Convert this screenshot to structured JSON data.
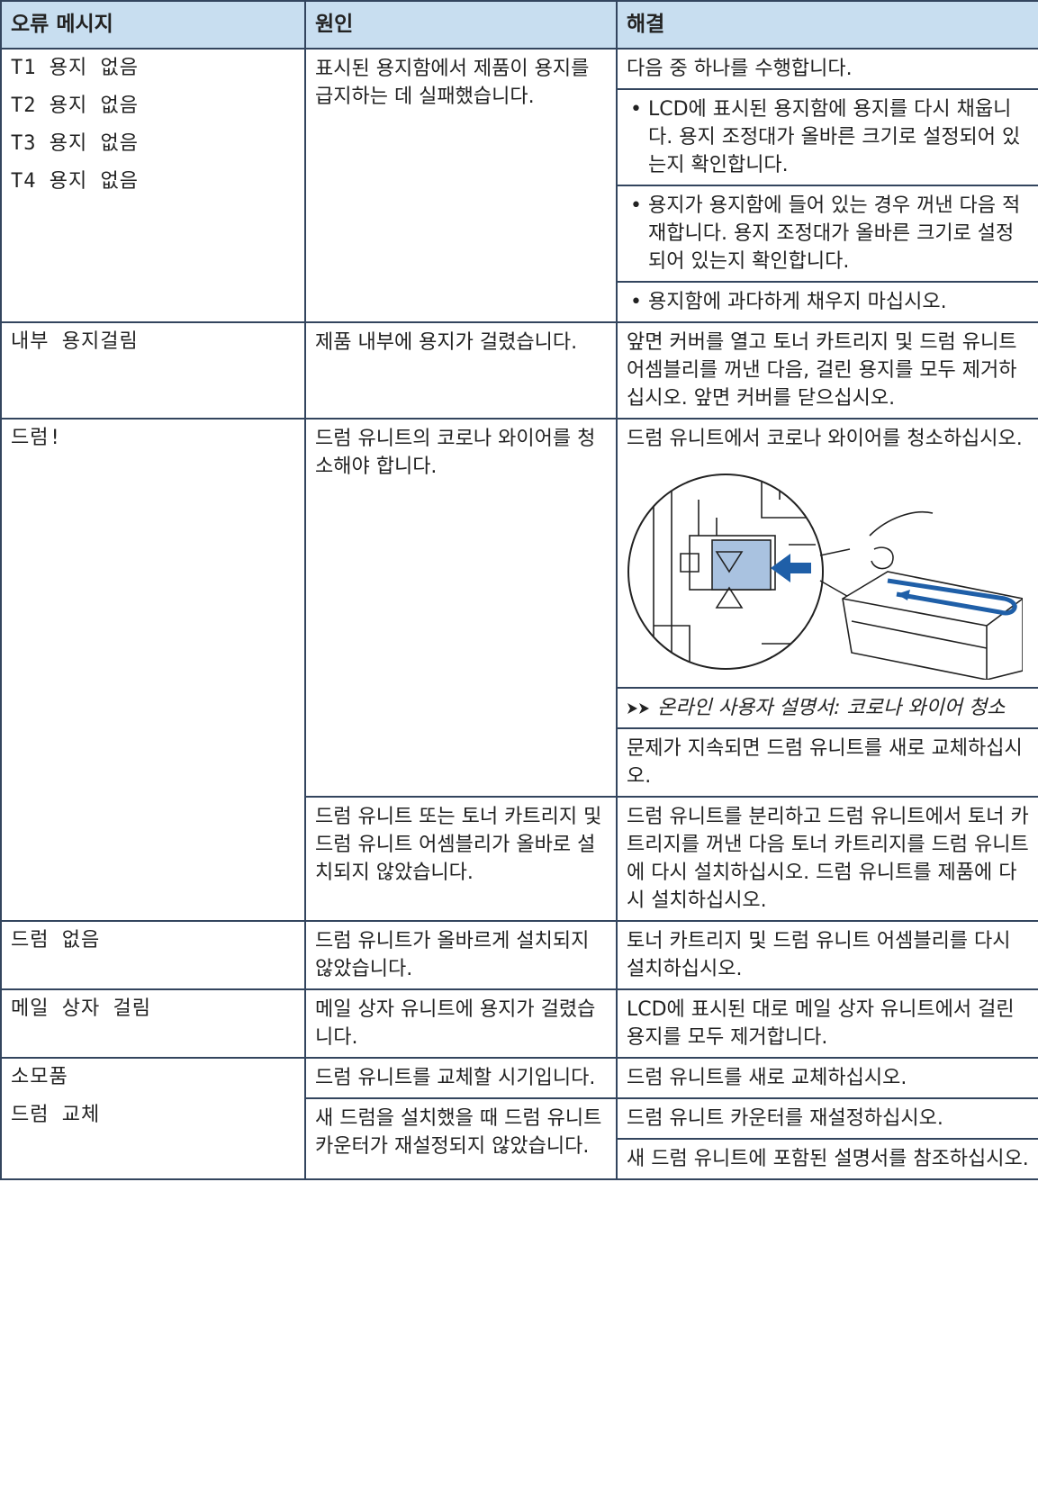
{
  "table": {
    "header": [
      "오류 메시지",
      "원인",
      "해결"
    ],
    "rows": [
      {
        "error": [
          "T1 용지 없음",
          "T2 용지 없음",
          "T3 용지 없음",
          "T4 용지 없음"
        ],
        "causes": [
          {
            "cause": "표시된 용지함에서 제품이 용지를 급지하는 데 실패했습니다.",
            "solution": [
              {
                "text": "다음 중 하나를 수행합니다."
              },
              {
                "bullet": "LCD에 표시된 용지함에 용지를 다시 채웁니다. 용지 조정대가 올바른 크기로 설정되어 있는지 확인합니다."
              },
              {
                "bullet": "용지가 용지함에 들어 있는 경우 꺼낸 다음 적재합니다. 용지 조정대가 올바른 크기로 설정되어 있는지 확인합니다."
              },
              {
                "bullet": "용지함에 과다하게 채우지 마십시오."
              }
            ]
          }
        ]
      },
      {
        "error": [
          "내부 용지걸림"
        ],
        "causes": [
          {
            "cause": "제품 내부에 용지가 걸렸습니다.",
            "solution": [
              {
                "text": "앞면 커버를 열고 토너 카트리지 및 드럼 유니트 어셈블리를 꺼낸 다음, 걸린 용지를 모두 제거하십시오. 앞면 커버를 닫으십시오."
              }
            ]
          }
        ]
      },
      {
        "error": [
          "드럼!"
        ],
        "causes": [
          {
            "cause": "드럼 유니트의 코로나 와이어를 청소해야 합니다.",
            "solution": [
              {
                "text": "드럼 유니트에서 코로나 와이어를 청소하십시오."
              },
              {
                "link": "온라인 사용자 설명서: 코로나 와이어 청소"
              },
              {
                "text": "문제가 지속되면 드럼 유니트를 새로 교체하십시오."
              }
            ]
          },
          {
            "cause": "드럼 유니트 또는 토너 카트리지 및 드럼 유니트 어셈블리가 올바로 설치되지 않았습니다.",
            "solution": [
              {
                "text": "드럼 유니트를 분리하고 드럼 유니트에서 토너 카트리지를 꺼낸 다음 토너 카트리지를 드럼 유니트에 다시 설치하십시오. 드럼 유니트를 제품에 다시 설치하십시오."
              }
            ]
          }
        ]
      },
      {
        "error": [
          "드럼 없음"
        ],
        "causes": [
          {
            "cause": "드럼 유니트가 올바르게 설치되지 않았습니다.",
            "solution": [
              {
                "text": "토너 카트리지 및 드럼 유니트 어셈블리를 다시 설치하십시오."
              }
            ]
          }
        ]
      },
      {
        "error": [
          "메일 상자 걸림"
        ],
        "causes": [
          {
            "cause": "메일 상자 유니트에 용지가 걸렸습니다.",
            "solution": [
              {
                "text": "LCD에 표시된 대로 메일 상자 유니트에서 걸린 용지를 모두 제거합니다."
              }
            ]
          }
        ]
      },
      {
        "error": [
          "소모품",
          "드럼 교체"
        ],
        "causes": [
          {
            "cause": "드럼 유니트를 교체할 시기입니다.",
            "solution": [
              {
                "text": "드럼 유니트를 새로 교체하십시오."
              }
            ]
          },
          {
            "cause": "새 드럼을 설치했을 때 드럼 유니트 카운터가 재설정되지 않았습니다.",
            "solution": [
              {
                "text": "드럼 유니트 카운터를 재설정하십시오."
              },
              {
                "text": "새 드럼 유니트에 포함된 설명서를 참조하십시오."
              }
            ]
          }
        ]
      }
    ]
  }
}
